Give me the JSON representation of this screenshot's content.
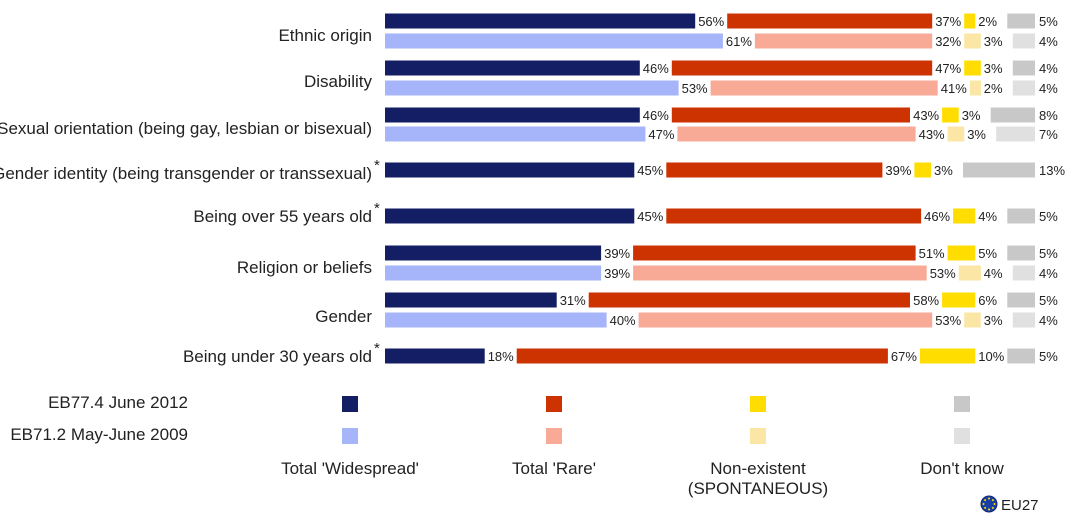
{
  "chart_data": {
    "type": "bar",
    "orientation": "horizontal-stacked",
    "categories": [
      "Ethnic origin",
      "Disability",
      "Sexual orientation (being gay, lesbian or bisexual)",
      "Gender identity (being transgender or transsexual)",
      "Being over 55 years old",
      "Religion or beliefs",
      "Gender",
      "Being under 30 years old"
    ],
    "category_marks": [
      "",
      "",
      "",
      "*",
      "*",
      "",
      "",
      "*"
    ],
    "segments": [
      "Total 'Widespread'",
      "Total 'Rare'",
      "Non-existent (SPONTANEOUS)",
      "Don't know"
    ],
    "segment_label_lines": [
      [
        "Total 'Widespread'"
      ],
      [
        "Total 'Rare'"
      ],
      [
        "Non-existent",
        "(SPONTANEOUS)"
      ],
      [
        "Don't know"
      ]
    ],
    "series": [
      {
        "name": "EB77.4 June 2012",
        "colors": [
          "#141e64",
          "#cc3300",
          "#ffdd00",
          "#c8c8c8"
        ],
        "values": [
          [
            56,
            37,
            2,
            5
          ],
          [
            46,
            47,
            3,
            4
          ],
          [
            46,
            43,
            3,
            8
          ],
          [
            45,
            39,
            3,
            13
          ],
          [
            45,
            46,
            4,
            5
          ],
          [
            39,
            51,
            5,
            5
          ],
          [
            31,
            58,
            6,
            5
          ],
          [
            18,
            67,
            10,
            5
          ]
        ]
      },
      {
        "name": "EB71.2 May-June 2009",
        "colors": [
          "#a6b4fa",
          "#f8aa96",
          "#fbe6a6",
          "#e0e0e0"
        ],
        "values": [
          [
            61,
            32,
            3,
            4
          ],
          [
            53,
            41,
            2,
            4
          ],
          [
            47,
            43,
            3,
            7
          ],
          null,
          null,
          [
            39,
            53,
            4,
            4
          ],
          [
            40,
            53,
            3,
            4
          ],
          null
        ]
      }
    ],
    "value_suffix": "%",
    "legend": "bottom",
    "grid": false
  },
  "footer": {
    "region_label": "EU27"
  }
}
